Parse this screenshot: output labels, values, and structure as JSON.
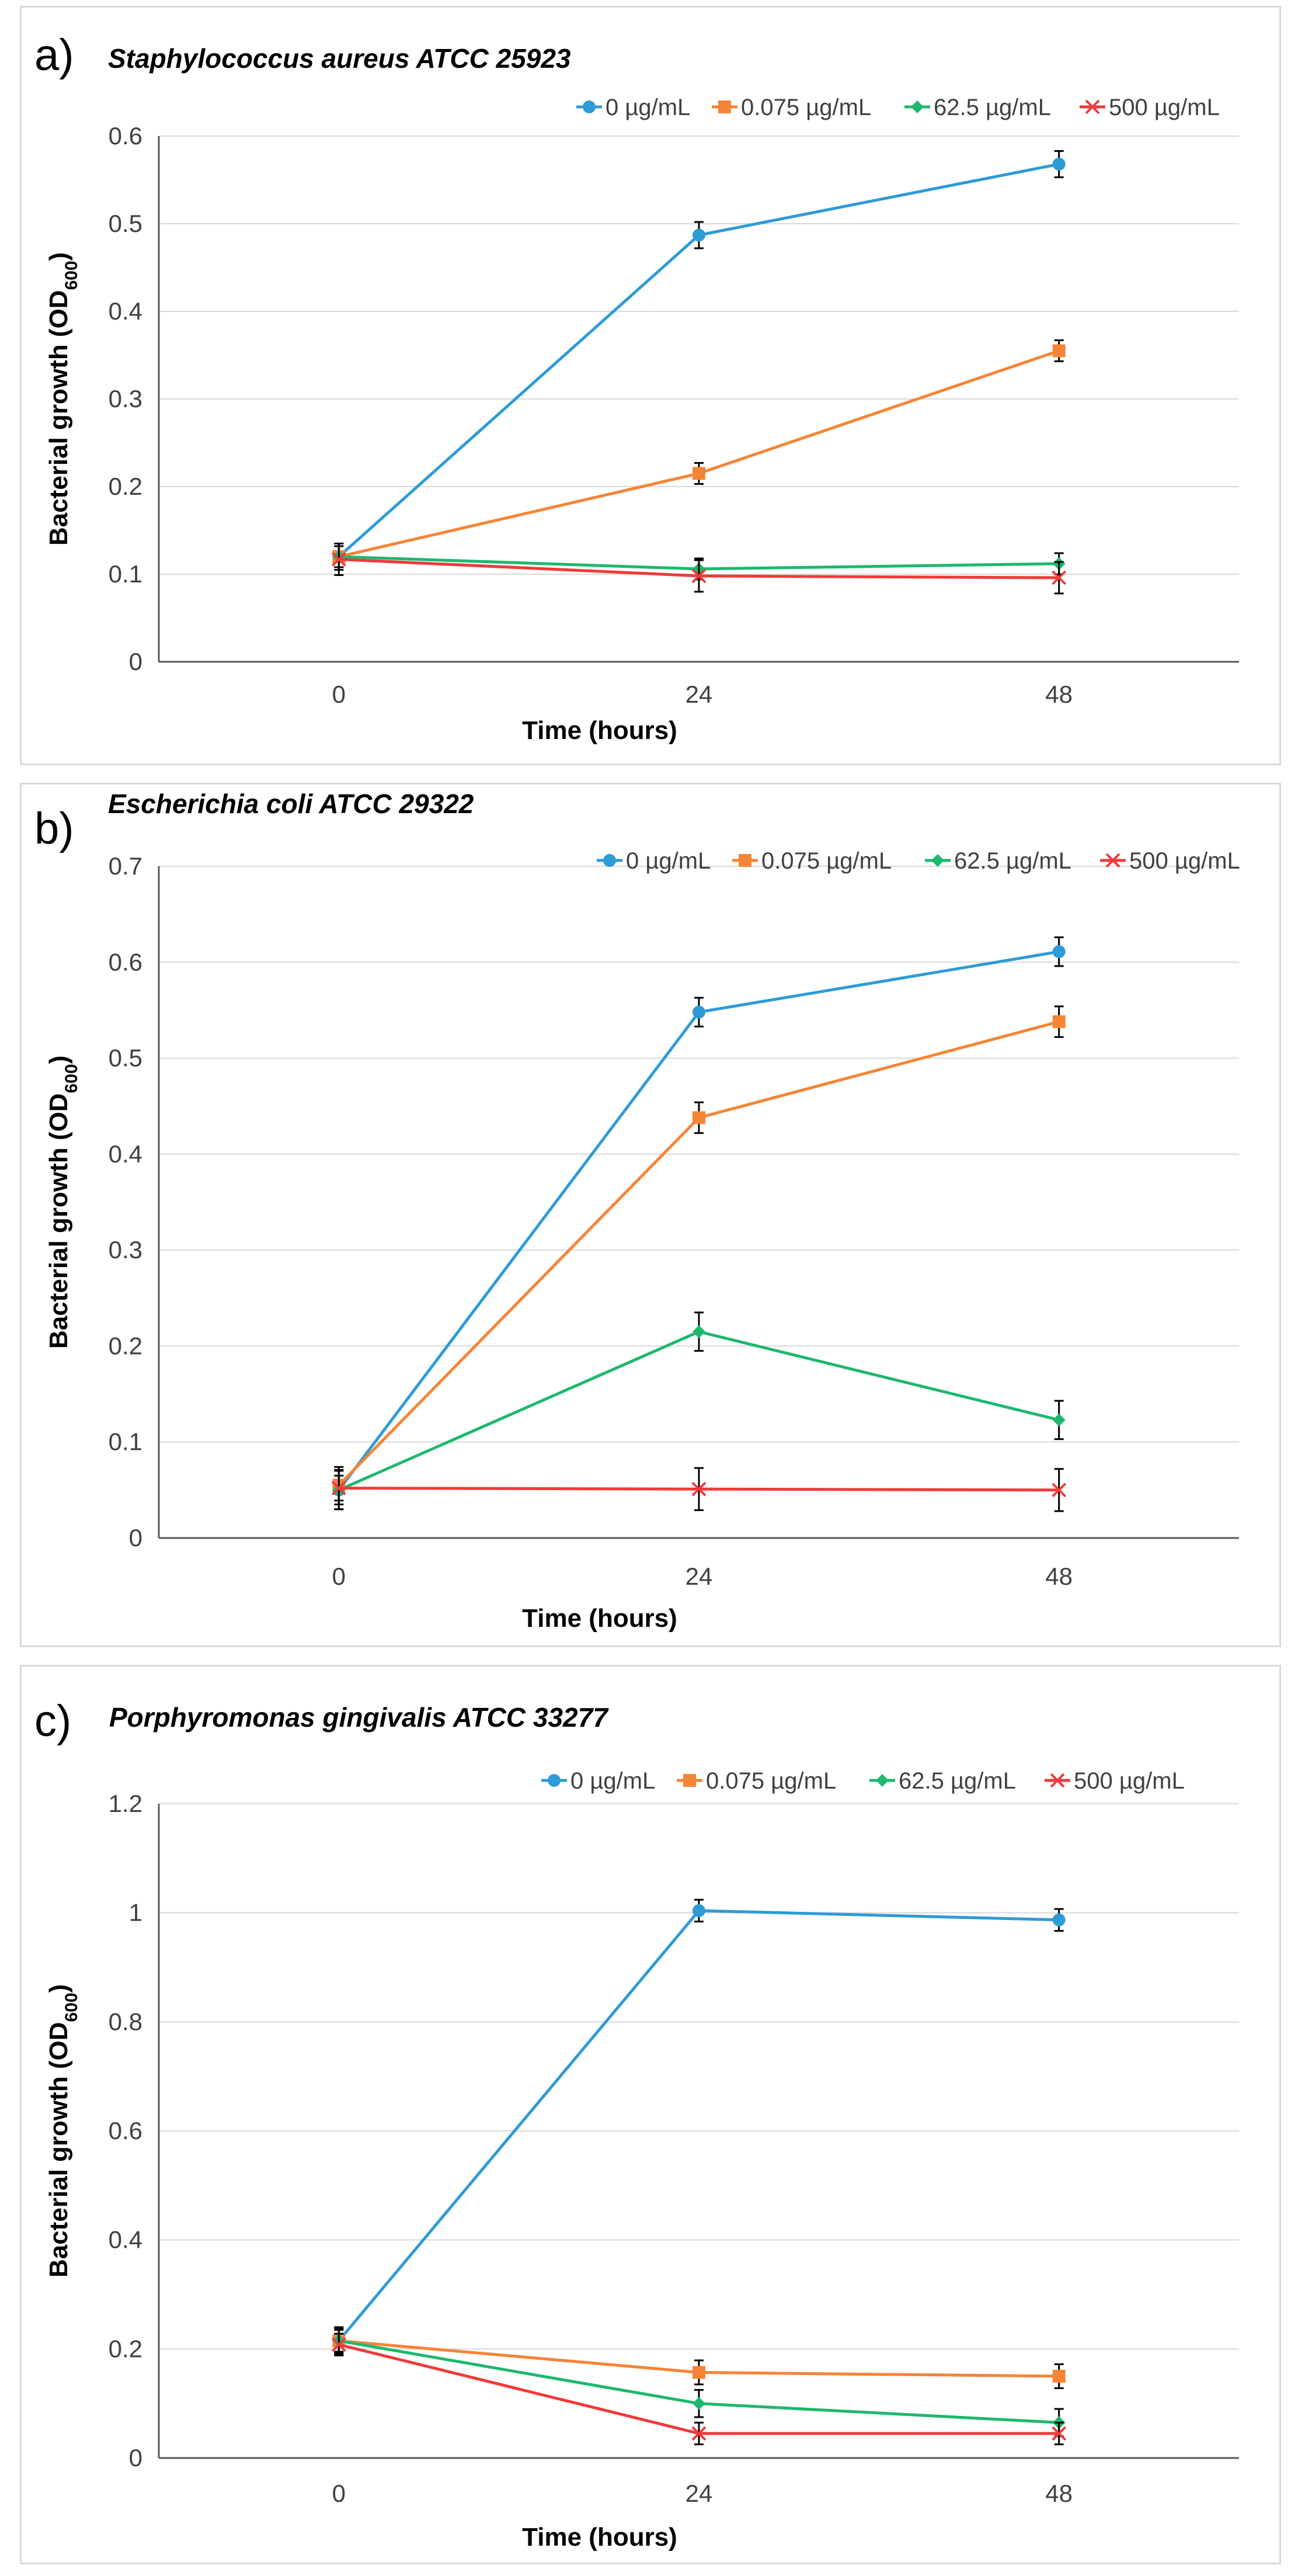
{
  "chart_data": [
    {
      "type": "line",
      "panel_label": "a)",
      "title": "Staphylococcus aureus ATCC 25923",
      "xlabel": "Time (hours)",
      "ylabel": "Bacterial growth (OD600)",
      "ylabel_main": "Bacterial growth (OD",
      "ylabel_sub": "600",
      "ylabel_close": ")",
      "categories": [
        "0",
        "24",
        "48"
      ],
      "ylim": [
        0,
        0.6
      ],
      "yticks": [
        0,
        0.1,
        0.2,
        0.3,
        0.4,
        0.5,
        0.6
      ],
      "ytick_labels": [
        "0",
        "0.1",
        "0.2",
        "0.3",
        "0.4",
        "0.5",
        "0.6"
      ],
      "legend_position": "top-right",
      "series": [
        {
          "name": "0 µg/mL",
          "color": "#2E9BD6",
          "marker": "circle",
          "values": [
            0.12,
            0.487,
            0.568
          ],
          "errors": [
            0.015,
            0.015,
            0.015
          ]
        },
        {
          "name": "0.075  µg/mL",
          "color": "#F58536",
          "marker": "square",
          "values": [
            0.12,
            0.215,
            0.355
          ],
          "errors": [
            0.012,
            0.012,
            0.012
          ]
        },
        {
          "name": "62.5 µg/mL",
          "color": "#1DB86E",
          "marker": "diamond",
          "values": [
            0.12,
            0.106,
            0.112
          ],
          "errors": [
            0.012,
            0.012,
            0.012
          ]
        },
        {
          "name": "500 µg/mL",
          "color": "#EE3B3B",
          "marker": "cross",
          "values": [
            0.117,
            0.098,
            0.096
          ],
          "errors": [
            0.018,
            0.018,
            0.018
          ]
        }
      ]
    },
    {
      "type": "line",
      "panel_label": "b)",
      "title": "Escherichia coli ATCC 29322",
      "xlabel": "Time (hours)",
      "ylabel": "Bacterial growth (OD600)",
      "ylabel_main": "Bacterial growth (OD",
      "ylabel_sub": "600",
      "ylabel_close": ")",
      "categories": [
        "0",
        "24",
        "48"
      ],
      "ylim": [
        0,
        0.7
      ],
      "yticks": [
        0,
        0.1,
        0.2,
        0.3,
        0.4,
        0.5,
        0.6,
        0.7
      ],
      "ytick_labels": [
        "0",
        "0.1",
        "0.2",
        "0.3",
        "0.4",
        "0.5",
        "0.6",
        "0.7"
      ],
      "legend_position": "top-right",
      "series": [
        {
          "name": "0 µg/mL",
          "color": "#2E9BD6",
          "marker": "circle",
          "values": [
            0.05,
            0.548,
            0.611
          ],
          "errors": [
            0.015,
            0.015,
            0.015
          ]
        },
        {
          "name": "0.075  µg/mL",
          "color": "#F58536",
          "marker": "square",
          "values": [
            0.055,
            0.438,
            0.538
          ],
          "errors": [
            0.016,
            0.016,
            0.016
          ]
        },
        {
          "name": "62.5 µg/mL",
          "color": "#1DB86E",
          "marker": "diamond",
          "values": [
            0.05,
            0.215,
            0.123
          ],
          "errors": [
            0.02,
            0.02,
            0.02
          ]
        },
        {
          "name": "500 µg/mL",
          "color": "#EE3B3B",
          "marker": "cross",
          "values": [
            0.052,
            0.051,
            0.05
          ],
          "errors": [
            0.022,
            0.022,
            0.022
          ]
        }
      ]
    },
    {
      "type": "line",
      "panel_label": "c)",
      "title": "Porphyromonas gingivalis ATCC 33277",
      "xlabel": "Time (hours)",
      "ylabel": "Bacterial growth (OD600)",
      "ylabel_main": "Bacterial growth (OD",
      "ylabel_sub": "600",
      "ylabel_close": ")",
      "categories": [
        "0",
        "24",
        "48"
      ],
      "ylim": [
        0,
        1.2
      ],
      "yticks": [
        0,
        0.2,
        0.4,
        0.6,
        0.8,
        1,
        1.2
      ],
      "ytick_labels": [
        "0",
        "0.2",
        "0.4",
        "0.6",
        "0.8",
        "1",
        "1.2"
      ],
      "legend_position": "top-right",
      "series": [
        {
          "name": "0 µg/mL",
          "color": "#2E9BD6",
          "marker": "circle",
          "values": [
            0.215,
            1.004,
            0.987
          ],
          "errors": [
            0.02,
            0.02,
            0.02
          ]
        },
        {
          "name": "0.075  µg/mL",
          "color": "#F58536",
          "marker": "square",
          "values": [
            0.215,
            0.157,
            0.15
          ],
          "errors": [
            0.022,
            0.022,
            0.022
          ]
        },
        {
          "name": "62.5 µg/mL",
          "color": "#1DB86E",
          "marker": "diamond",
          "values": [
            0.215,
            0.1,
            0.065
          ],
          "errors": [
            0.025,
            0.025,
            0.025
          ]
        },
        {
          "name": "500 µg/mL",
          "color": "#EE3B3B",
          "marker": "cross",
          "values": [
            0.208,
            0.045,
            0.045
          ],
          "errors": [
            0.02,
            0.02,
            0.02
          ]
        }
      ]
    }
  ]
}
